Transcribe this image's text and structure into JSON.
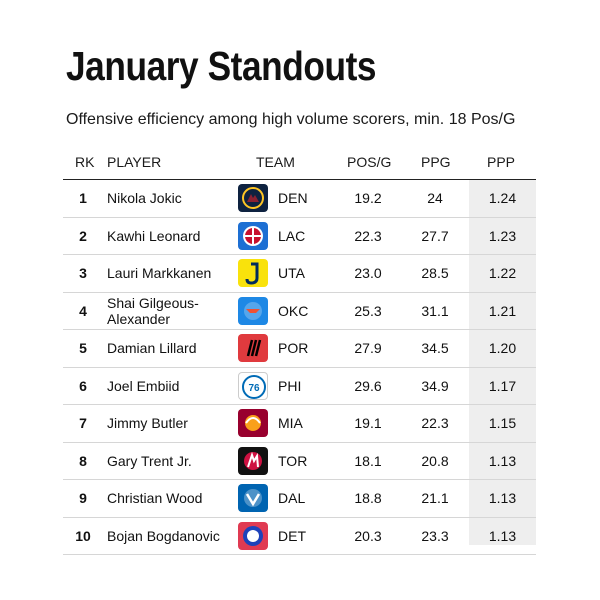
{
  "title": "January Standouts",
  "subtitle": "Offensive efficiency among high volume scorers, min. 18 Pos/G",
  "chart_data": {
    "type": "table",
    "columns": [
      "RK",
      "PLAYER",
      "TEAM",
      "POS/G",
      "PPG",
      "PPP"
    ],
    "highlight_column": "PPP",
    "rows": [
      {
        "rk": "1",
        "player": "Nikola Jokic",
        "team": "DEN",
        "logo_icon": "nuggets-logo-icon",
        "logo_color": "#0E2240",
        "pos_g": "19.2",
        "ppg": "24",
        "ppp": "1.24"
      },
      {
        "rk": "2",
        "player": "Kawhi Leonard",
        "team": "LAC",
        "logo_icon": "clippers-logo-icon",
        "logo_color": "#1D6FD3",
        "pos_g": "22.3",
        "ppg": "27.7",
        "ppp": "1.23"
      },
      {
        "rk": "3",
        "player": "Lauri Markkanen",
        "team": "UTA",
        "logo_icon": "jazz-logo-icon",
        "logo_color": "#F9E20C",
        "pos_g": "23.0",
        "ppg": "28.5",
        "ppp": "1.22"
      },
      {
        "rk": "4",
        "player": "Shai Gilgeous-Alexander",
        "team": "OKC",
        "logo_icon": "thunder-logo-icon",
        "logo_color": "#1E88E5",
        "pos_g": "25.3",
        "ppg": "31.1",
        "ppp": "1.21"
      },
      {
        "rk": "5",
        "player": "Damian Lillard",
        "team": "POR",
        "logo_icon": "trail-blazers-logo-icon",
        "logo_color": "#E03A3E",
        "pos_g": "27.9",
        "ppg": "34.5",
        "ppp": "1.20"
      },
      {
        "rk": "6",
        "player": "Joel Embiid",
        "team": "PHI",
        "logo_icon": "76ers-logo-icon",
        "logo_color": "#ffffff",
        "pos_g": "29.6",
        "ppg": "34.9",
        "ppp": "1.17"
      },
      {
        "rk": "7",
        "player": "Jimmy Butler",
        "team": "MIA",
        "logo_icon": "heat-logo-icon",
        "logo_color": "#98002E",
        "pos_g": "19.1",
        "ppg": "22.3",
        "ppp": "1.15"
      },
      {
        "rk": "8",
        "player": "Gary Trent Jr.",
        "team": "TOR",
        "logo_icon": "raptors-logo-icon",
        "logo_color": "#111111",
        "pos_g": "18.1",
        "ppg": "20.8",
        "ppp": "1.13"
      },
      {
        "rk": "9",
        "player": "Christian Wood",
        "team": "DAL",
        "logo_icon": "mavericks-logo-icon",
        "logo_color": "#0064B1",
        "pos_g": "18.8",
        "ppg": "21.1",
        "ppp": "1.13"
      },
      {
        "rk": "10",
        "player": "Bojan Bogdanovic",
        "team": "DET",
        "logo_icon": "pistons-logo-icon",
        "logo_color": "#E03A52",
        "pos_g": "20.3",
        "ppg": "23.3",
        "ppp": "1.13"
      }
    ]
  }
}
